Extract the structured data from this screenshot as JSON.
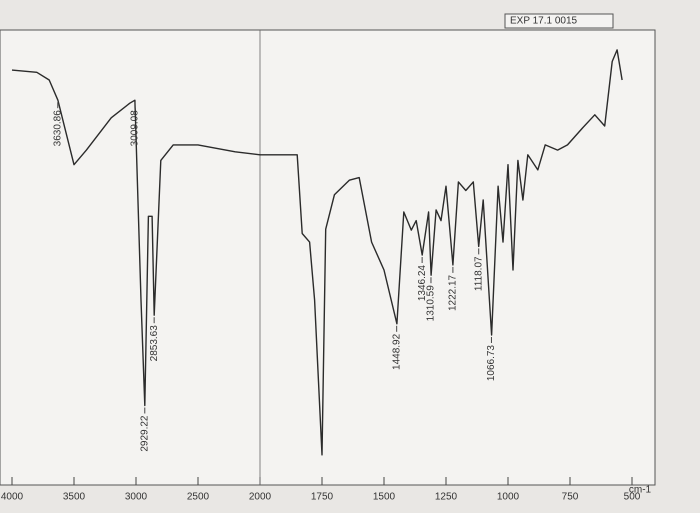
{
  "chart_data": {
    "type": "line",
    "title": "EXP 17.1 0015",
    "x_label": "cm-1",
    "xlim": [
      4000,
      400
    ],
    "xticks": [
      4000,
      3500,
      3000,
      2500,
      2000,
      1750,
      1500,
      1250,
      1000,
      750,
      500
    ],
    "ylim": [
      0,
      100
    ],
    "grid_x": [
      2000
    ],
    "series": [
      {
        "name": "EXP 17.1 0015",
        "color": "#2b2b2b",
        "x": [
          4000,
          3800,
          3700,
          3630,
          3500,
          3400,
          3200,
          3050,
          3009,
          2960,
          2929,
          2900,
          2870,
          2853,
          2800,
          2700,
          2500,
          2200,
          2000,
          1850,
          1830,
          1800,
          1780,
          1750,
          1735,
          1700,
          1640,
          1600,
          1550,
          1500,
          1448,
          1420,
          1390,
          1370,
          1346,
          1320,
          1310,
          1290,
          1270,
          1250,
          1222,
          1200,
          1170,
          1140,
          1118,
          1100,
          1066,
          1040,
          1020,
          1000,
          980,
          960,
          940,
          920,
          880,
          850,
          800,
          760,
          700,
          650,
          610,
          580,
          560,
          540
        ],
        "values": [
          93,
          92.5,
          90.7,
          86,
          71,
          74.4,
          81.9,
          85.3,
          86,
          39.5,
          15,
          59,
          59,
          36,
          72,
          75.6,
          75.6,
          74,
          73.3,
          73.3,
          55,
          53,
          39.5,
          3.5,
          56,
          64,
          67.4,
          68,
          53,
          46.5,
          34,
          60,
          55.8,
          58,
          50,
          60,
          45.3,
          60.5,
          58,
          66,
          47.7,
          67,
          65,
          67,
          52,
          62.8,
          31.4,
          66,
          53,
          71,
          46.5,
          72,
          62.8,
          73.3,
          69.8,
          75.6,
          74.4,
          75.6,
          79.5,
          82.6,
          80,
          95,
          97.7,
          90.7
        ]
      }
    ],
    "peaks": [
      {
        "x": 3630.86,
        "y": 86
      },
      {
        "x": 3009.08,
        "y": 86
      },
      {
        "x": 2929.22,
        "y": 15
      },
      {
        "x": 2853.63,
        "y": 36
      },
      {
        "x": 1448.92,
        "y": 34
      },
      {
        "x": 1346.24,
        "y": 50
      },
      {
        "x": 1310.59,
        "y": 45.3
      },
      {
        "x": 1222.17,
        "y": 47.7
      },
      {
        "x": 1118.07,
        "y": 52
      },
      {
        "x": 1066.73,
        "y": 31.4
      }
    ]
  }
}
